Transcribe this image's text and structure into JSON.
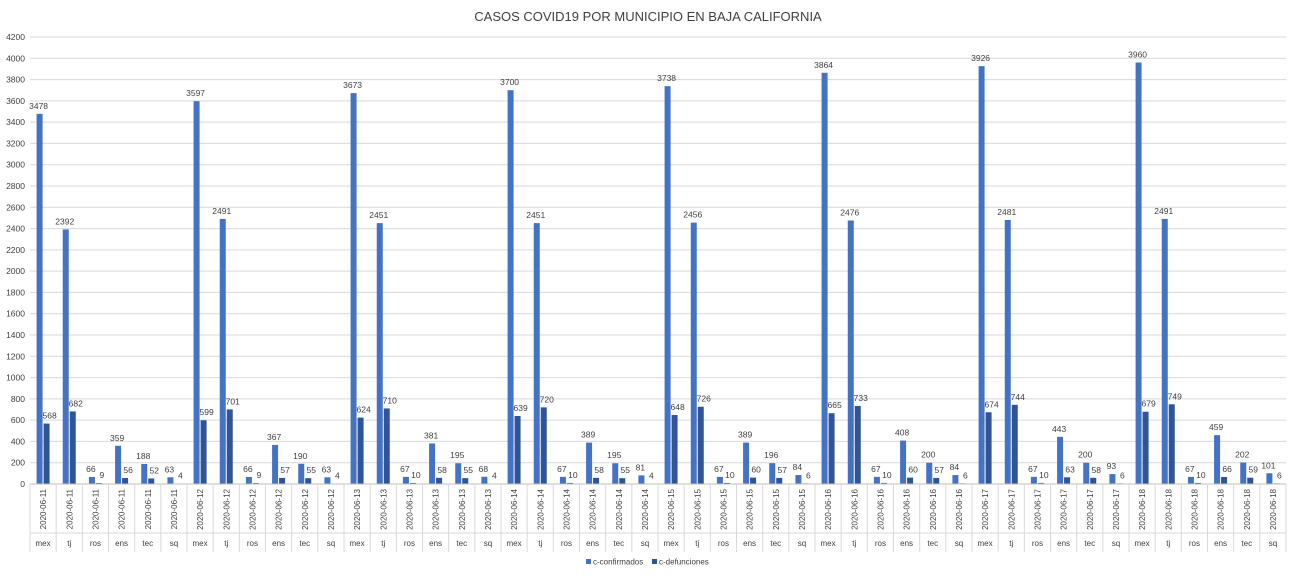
{
  "chart_data": {
    "type": "bar",
    "title": "CASOS COVID19 POR MUNICIPIO EN BAJA CALIFORNIA",
    "xlabel": "",
    "ylabel": "",
    "ylim": [
      0,
      4200
    ],
    "yticks": [
      0,
      200,
      400,
      600,
      800,
      1000,
      1200,
      1400,
      1600,
      1800,
      2000,
      2200,
      2400,
      2600,
      2800,
      3000,
      3200,
      3400,
      3600,
      3800,
      4000,
      4200
    ],
    "grid": true,
    "legend_position": "bottom",
    "categories": [
      {
        "date": "2020-06-11",
        "mun": "mex"
      },
      {
        "date": "2020-06-11",
        "mun": "tj"
      },
      {
        "date": "2020-06-11",
        "mun": "ros"
      },
      {
        "date": "2020-06-11",
        "mun": "ens"
      },
      {
        "date": "2020-06-11",
        "mun": "tec"
      },
      {
        "date": "2020-06-11",
        "mun": "sq"
      },
      {
        "date": "2020-06-12",
        "mun": "mex"
      },
      {
        "date": "2020-06-12",
        "mun": "tj"
      },
      {
        "date": "2020-06-12",
        "mun": "ros"
      },
      {
        "date": "2020-06-12",
        "mun": "ens"
      },
      {
        "date": "2020-06-12",
        "mun": "tec"
      },
      {
        "date": "2020-06-12",
        "mun": "sq"
      },
      {
        "date": "2020-06-13",
        "mun": "mex"
      },
      {
        "date": "2020-06-13",
        "mun": "tj"
      },
      {
        "date": "2020-06-13",
        "mun": "ros"
      },
      {
        "date": "2020-06-13",
        "mun": "ens"
      },
      {
        "date": "2020-06-13",
        "mun": "tec"
      },
      {
        "date": "2020-06-13",
        "mun": "sq"
      },
      {
        "date": "2020-06-14",
        "mun": "mex"
      },
      {
        "date": "2020-06-14",
        "mun": "tj"
      },
      {
        "date": "2020-06-14",
        "mun": "ros"
      },
      {
        "date": "2020-06-14",
        "mun": "ens"
      },
      {
        "date": "2020-06-14",
        "mun": "tec"
      },
      {
        "date": "2020-06-14",
        "mun": "sq"
      },
      {
        "date": "2020-06-15",
        "mun": "mex"
      },
      {
        "date": "2020-06-15",
        "mun": "tj"
      },
      {
        "date": "2020-06-15",
        "mun": "ros"
      },
      {
        "date": "2020-06-15",
        "mun": "ens"
      },
      {
        "date": "2020-06-15",
        "mun": "tec"
      },
      {
        "date": "2020-06-15",
        "mun": "sq"
      },
      {
        "date": "2020-06-16",
        "mun": "mex"
      },
      {
        "date": "2020-06-16",
        "mun": "tj"
      },
      {
        "date": "2020-06-16",
        "mun": "ros"
      },
      {
        "date": "2020-06-16",
        "mun": "ens"
      },
      {
        "date": "2020-06-16",
        "mun": "tec"
      },
      {
        "date": "2020-06-16",
        "mun": "sq"
      },
      {
        "date": "2020-06-17",
        "mun": "mex"
      },
      {
        "date": "2020-06-17",
        "mun": "tj"
      },
      {
        "date": "2020-06-17",
        "mun": "ros"
      },
      {
        "date": "2020-06-17",
        "mun": "ens"
      },
      {
        "date": "2020-06-17",
        "mun": "tec"
      },
      {
        "date": "2020-06-17",
        "mun": "sq"
      },
      {
        "date": "2020-06-18",
        "mun": "mex"
      },
      {
        "date": "2020-06-18",
        "mun": "tj"
      },
      {
        "date": "2020-06-18",
        "mun": "ros"
      },
      {
        "date": "2020-06-18",
        "mun": "ens"
      },
      {
        "date": "2020-06-18",
        "mun": "tec"
      },
      {
        "date": "2020-06-18",
        "mun": "sq"
      }
    ],
    "series": [
      {
        "name": "c-confirmados",
        "color": "#4472C4",
        "values": [
          3478,
          2392,
          66,
          359,
          188,
          63,
          3597,
          2491,
          66,
          367,
          190,
          63,
          3673,
          2451,
          67,
          381,
          195,
          68,
          3700,
          2451,
          67,
          389,
          195,
          81,
          3738,
          2456,
          67,
          389,
          196,
          84,
          3864,
          2476,
          67,
          408,
          200,
          84,
          3926,
          2481,
          67,
          443,
          200,
          93,
          3960,
          2491,
          67,
          459,
          202,
          101
        ]
      },
      {
        "name": "c-defunciones",
        "color": "#2F5597",
        "values": [
          568,
          682,
          9,
          56,
          52,
          4,
          599,
          701,
          9,
          57,
          55,
          4,
          624,
          710,
          10,
          58,
          55,
          4,
          639,
          720,
          10,
          58,
          55,
          4,
          648,
          726,
          10,
          60,
          57,
          6,
          665,
          733,
          10,
          60,
          57,
          6,
          674,
          744,
          10,
          63,
          58,
          6,
          679,
          749,
          10,
          66,
          59,
          6
        ]
      }
    ]
  }
}
